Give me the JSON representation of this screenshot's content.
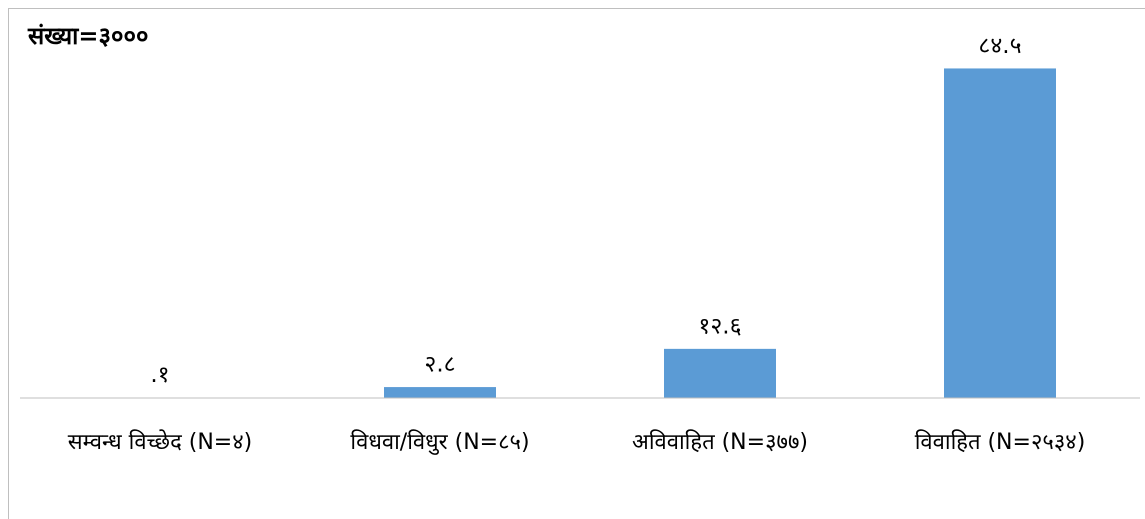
{
  "chart_data": {
    "type": "bar",
    "annotation": "संख्या=३०००",
    "categories": [
      "सम्वन्ध विच्छेद (N=४)",
      "विधवा/विधुर (N=८५)",
      "अविवाहित (N=३७७)",
      "विवाहित (N=२५३४)"
    ],
    "values": [
      0.1,
      2.8,
      12.6,
      84.5
    ],
    "value_labels": [
      ".१",
      "२.८",
      "१२.६",
      "८४.५"
    ],
    "color": "#5b9bd5",
    "ylim": [
      0,
      100
    ]
  }
}
